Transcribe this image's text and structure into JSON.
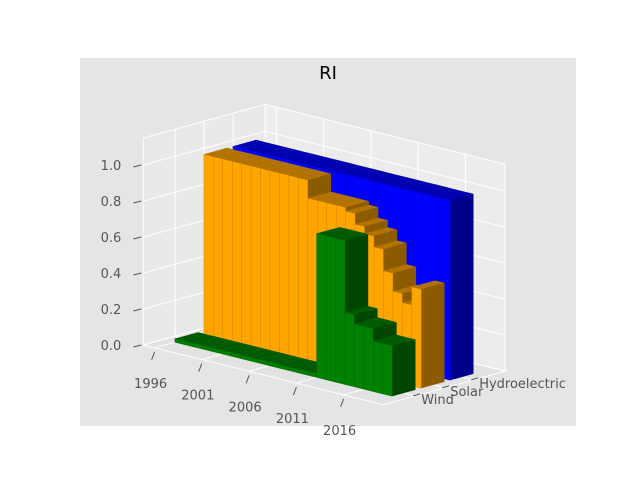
{
  "chart_data": {
    "type": "bar3d",
    "title": "RI",
    "x_ticks": [
      "1996",
      "2001",
      "2006",
      "2011",
      "2016"
    ],
    "y_ticks": [
      "Wind",
      "Solar",
      "Hydroelectric"
    ],
    "z_ticks": [
      "0.0",
      "0.2",
      "0.4",
      "0.6",
      "0.8",
      "1.0"
    ],
    "zlim": [
      0,
      1
    ],
    "grid": true,
    "years": [
      1996,
      1997,
      1998,
      1999,
      2000,
      2001,
      2002,
      2003,
      2004,
      2005,
      2006,
      2007,
      2008,
      2009,
      2010,
      2011,
      2012,
      2013,
      2014,
      2015,
      2016,
      2017,
      2018
    ],
    "series": [
      {
        "name": "Wind",
        "color": "#008000",
        "values": [
          0.02,
          0.02,
          0.02,
          0.02,
          0.02,
          0.02,
          0.02,
          0.02,
          0.02,
          0.02,
          0.02,
          0.02,
          0.02,
          0.02,
          0.02,
          0.8,
          0.8,
          0.8,
          0.4,
          0.35,
          0.35,
          0.28,
          0.28
        ]
      },
      {
        "name": "Solar",
        "color": "#FFA500",
        "values": [
          1.0,
          1.0,
          1.0,
          1.0,
          1.0,
          1.0,
          1.0,
          1.0,
          1.0,
          1.0,
          1.0,
          0.9,
          0.9,
          0.9,
          0.9,
          0.88,
          0.82,
          0.78,
          0.72,
          0.6,
          0.5,
          0.45,
          0.55
        ]
      },
      {
        "name": "Hydroelectric",
        "color": "#0000FF",
        "values": [
          1.0,
          1.0,
          1.0,
          1.0,
          1.0,
          1.0,
          1.0,
          1.0,
          1.0,
          1.0,
          1.0,
          1.0,
          1.0,
          1.0,
          1.0,
          1.0,
          1.0,
          1.0,
          1.0,
          1.0,
          1.0,
          1.0,
          1.0
        ]
      }
    ]
  }
}
